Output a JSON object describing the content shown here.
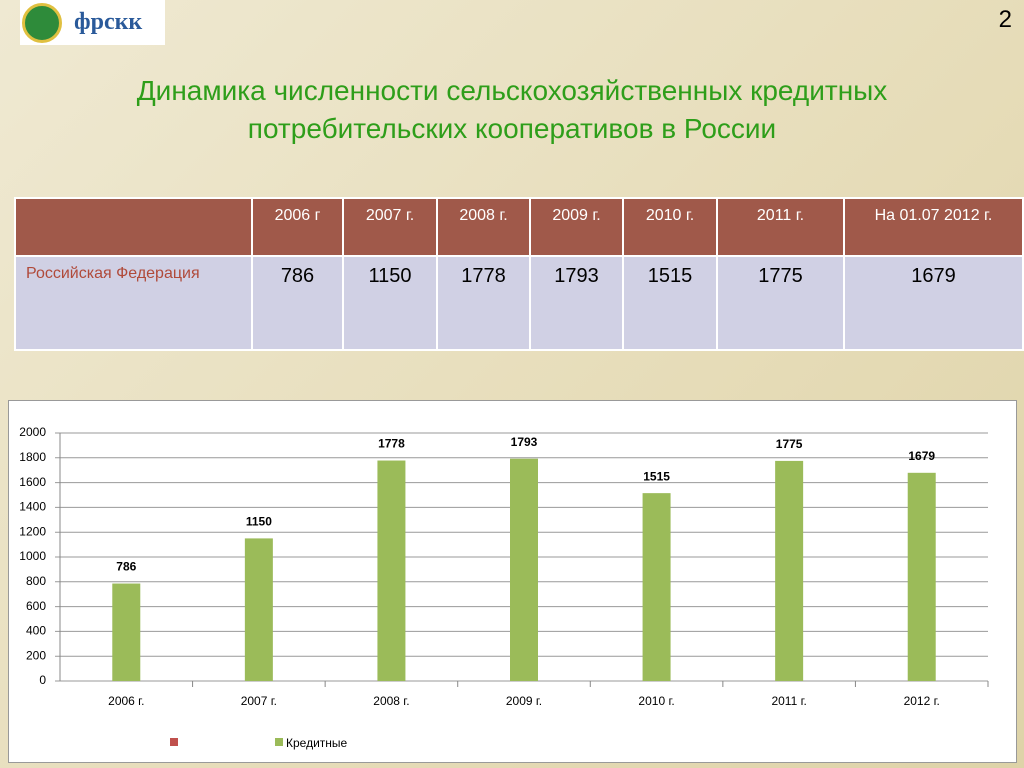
{
  "page_number": "2",
  "logo_text": "фрскк",
  "header": {
    "title_lines": [
      "Динамика численности сельскохозяйственных кредитных",
      "потребительских кооперативов в России"
    ]
  },
  "table": {
    "columns": [
      "2006 г",
      "2007 г.",
      "2008 г.",
      "2009 г.",
      "2010 г.",
      "2011 г.",
      "На 01.07 2012 г."
    ],
    "rows": [
      {
        "label": "Российская Федерация",
        "values": [
          786,
          1150,
          1778,
          1793,
          1515,
          1775,
          1679
        ]
      }
    ]
  },
  "chart_data": {
    "type": "bar",
    "categories": [
      "2006 г.",
      "2007 г.",
      "2008 г.",
      "2009 г.",
      "2010 г.",
      "2011 г.",
      "2012 г."
    ],
    "series": [
      {
        "name": "Кредитные",
        "color": "#9bbb59",
        "values": [
          786,
          1150,
          1778,
          1793,
          1515,
          1775,
          1679
        ]
      }
    ],
    "ylim": [
      0,
      2000
    ],
    "yticks": [
      0,
      200,
      400,
      600,
      800,
      1000,
      1200,
      1400,
      1600,
      1800,
      2000
    ],
    "grid": true
  }
}
